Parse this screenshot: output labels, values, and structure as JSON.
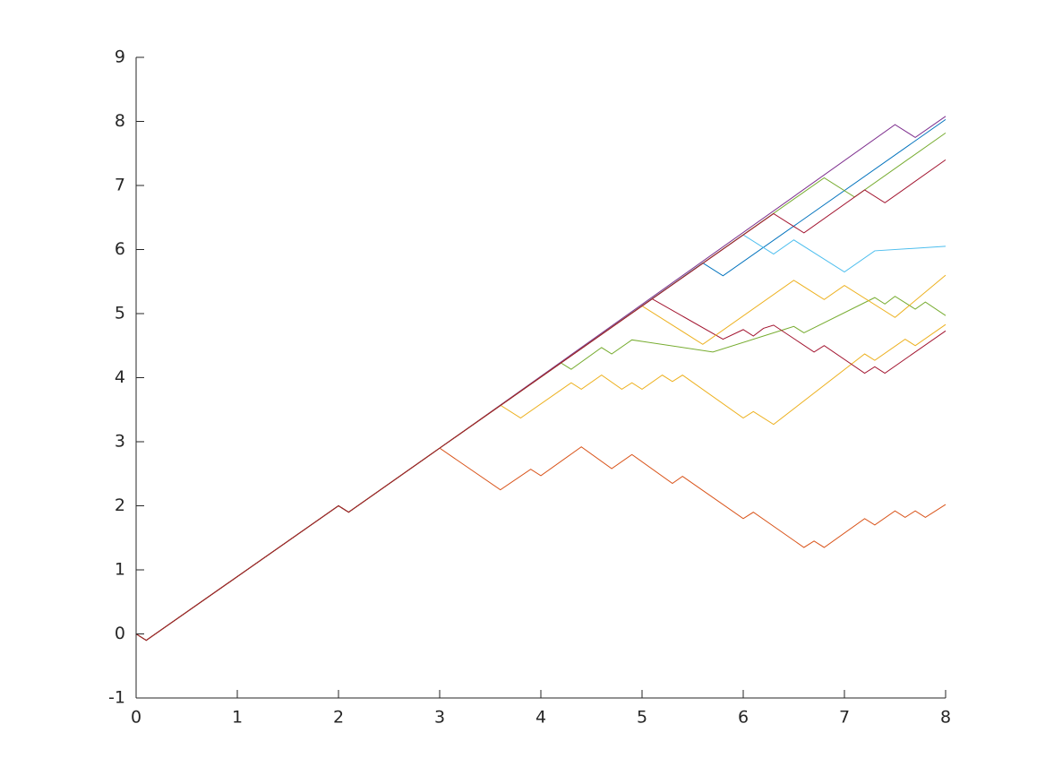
{
  "chart_data": {
    "type": "line",
    "xlim": [
      0,
      8
    ],
    "ylim": [
      -1,
      9
    ],
    "xticks": [
      0,
      1,
      2,
      3,
      4,
      5,
      6,
      7,
      8
    ],
    "yticks": [
      -1,
      0,
      1,
      2,
      3,
      4,
      5,
      6,
      7,
      8,
      9
    ],
    "grid": false,
    "series": [
      {
        "color": "#0072bd",
        "x": [
          0,
          0.1,
          2.0,
          2.1,
          3.0,
          5.6,
          5.8,
          8.0
        ],
        "values": [
          0,
          -0.1,
          2.0,
          1.9,
          2.9,
          5.79,
          5.59,
          8.03
        ]
      },
      {
        "color": "#d95319",
        "x": [
          0,
          0.1,
          2.0,
          2.1,
          3.0,
          3.6,
          3.9,
          4.0,
          4.4,
          4.7,
          4.9,
          5.3,
          5.4,
          6.0,
          6.1,
          6.6,
          6.7,
          6.8,
          7.2,
          7.3,
          7.5,
          7.6,
          7.7,
          7.8,
          8.0
        ],
        "values": [
          0,
          -0.1,
          2.0,
          1.9,
          2.9,
          2.25,
          2.57,
          2.47,
          2.92,
          2.58,
          2.8,
          2.35,
          2.46,
          1.8,
          1.9,
          1.35,
          1.45,
          1.35,
          1.8,
          1.7,
          1.92,
          1.82,
          1.92,
          1.82,
          2.02
        ]
      },
      {
        "color": "#edb120",
        "x": [
          0,
          0.1,
          2.0,
          2.1,
          3.0,
          3.6,
          3.8,
          4.3,
          4.4,
          4.6,
          4.8,
          4.9,
          5.0,
          5.2,
          5.3,
          5.4,
          6.0,
          6.1,
          6.3,
          7.2,
          7.3,
          7.6,
          7.7,
          8.0
        ],
        "values": [
          0,
          -0.1,
          2.0,
          1.9,
          2.9,
          3.57,
          3.37,
          3.92,
          3.82,
          4.04,
          3.82,
          3.92,
          3.82,
          4.04,
          3.94,
          4.04,
          3.37,
          3.47,
          3.27,
          4.37,
          4.27,
          4.6,
          4.5,
          4.83
        ]
      },
      {
        "color": "#7e2f8e",
        "x": [
          0,
          0.1,
          2.0,
          2.1,
          3.0,
          7.5,
          7.7,
          8.0
        ],
        "values": [
          0,
          -0.1,
          2.0,
          1.9,
          2.9,
          7.95,
          7.75,
          8.08
        ]
      },
      {
        "color": "#77ac30",
        "x": [
          0,
          0.1,
          2.0,
          2.1,
          3.0,
          4.2,
          4.3,
          4.6,
          4.7,
          4.9,
          5.7,
          6.4,
          6.5,
          6.6,
          7.3,
          7.4,
          7.5,
          7.7,
          7.8,
          8.0
        ],
        "values": [
          0,
          -0.1,
          2.0,
          1.9,
          2.9,
          4.23,
          4.13,
          4.47,
          4.37,
          4.59,
          4.4,
          4.75,
          4.8,
          4.7,
          5.25,
          5.15,
          5.27,
          5.07,
          5.18,
          4.97
        ]
      },
      {
        "color": "#4dbeee",
        "x": [
          0,
          0.1,
          2.0,
          2.1,
          3.0,
          6.0,
          6.3,
          6.5,
          7.0,
          7.3,
          8.0
        ],
        "values": [
          0,
          -0.1,
          2.0,
          1.9,
          2.9,
          6.23,
          5.93,
          6.15,
          5.65,
          5.98,
          6.05
        ]
      },
      {
        "color": "#a2142f",
        "x": [
          0,
          0.1,
          2.0,
          2.1,
          3.0,
          5.1,
          5.8,
          6.0,
          6.1,
          6.2,
          6.3,
          6.7,
          6.8,
          7.2,
          7.3,
          7.4,
          8.0
        ],
        "values": [
          0,
          -0.1,
          2.0,
          1.9,
          2.9,
          5.23,
          4.6,
          4.75,
          4.65,
          4.77,
          4.82,
          4.4,
          4.5,
          4.07,
          4.17,
          4.07,
          4.73
        ]
      },
      {
        "color": "#edb120",
        "x": [
          0,
          0.1,
          2.0,
          2.1,
          3.0,
          5.0,
          5.6,
          6.5,
          6.8,
          7.0,
          7.5,
          8.0
        ],
        "values": [
          0,
          -0.1,
          2.0,
          1.9,
          2.9,
          5.12,
          4.52,
          5.52,
          5.22,
          5.44,
          4.94,
          5.6
        ]
      },
      {
        "color": "#77ac30",
        "x": [
          0,
          0.1,
          2.0,
          2.1,
          3.0,
          6.8,
          7.1,
          8.0
        ],
        "values": [
          0,
          -0.1,
          2.0,
          1.9,
          2.9,
          7.12,
          6.82,
          7.82
        ]
      },
      {
        "color": "#a2142f",
        "x": [
          0,
          0.1,
          2.0,
          2.1,
          3.0,
          6.3,
          6.6,
          7.2,
          7.4,
          8.0
        ],
        "values": [
          0,
          -0.1,
          2.0,
          1.9,
          2.9,
          6.56,
          6.26,
          6.93,
          6.73,
          7.4
        ]
      }
    ]
  }
}
